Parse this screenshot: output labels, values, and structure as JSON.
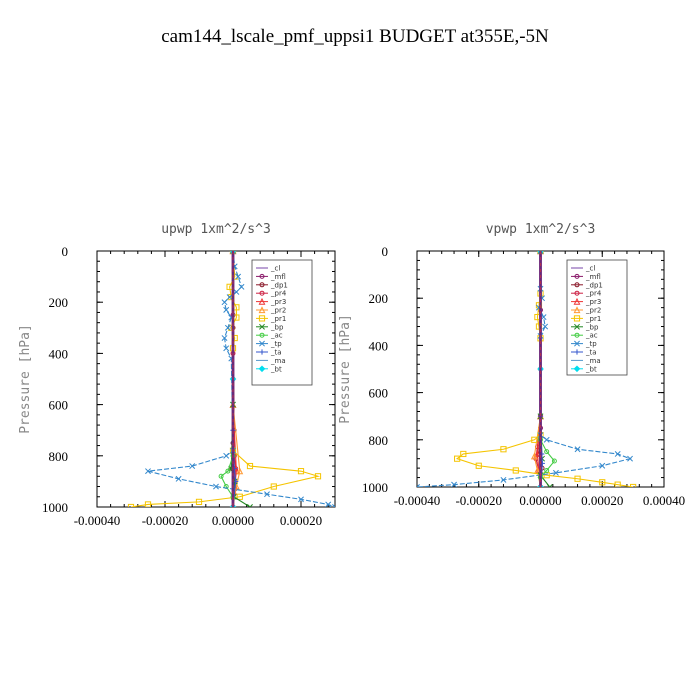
{
  "figure_title": "cam144_lscale_pmf_uppsi1  BUDGET at355E,-5N",
  "chart_data": [
    {
      "type": "line",
      "title": "upwp   1xm^2/s^3",
      "ylabel": "Pressure [hPa]",
      "xlabel": "",
      "xlim": [
        -0.0004,
        0.0003
      ],
      "ylim": [
        1000,
        0
      ],
      "x_ticks": [
        -0.0004,
        -0.0002,
        0.0,
        0.0002
      ],
      "x_tick_labels": [
        "-0.00040",
        "-0.00020",
        "0.00000",
        "0.00020"
      ],
      "y_ticks": [
        0,
        200,
        400,
        600,
        800,
        1000
      ],
      "y_tick_labels": [
        "0",
        "200",
        "400",
        "600",
        "800",
        "1000"
      ],
      "legend_position": "top-right",
      "series": [
        {
          "name": "_cl",
          "color": "#7744aa",
          "marker": "none",
          "x": [
            0,
            0,
            0,
            0,
            0
          ],
          "y": [
            0,
            250,
            500,
            750,
            1000
          ]
        },
        {
          "name": "_mfl",
          "color": "#8a1a6a",
          "marker": "circle",
          "x": [
            0,
            0,
            0,
            0,
            0
          ],
          "y": [
            0,
            250,
            500,
            750,
            1000
          ]
        },
        {
          "name": "_dp1",
          "color": "#8b1a2a",
          "marker": "circle",
          "x": [
            0,
            0,
            3e-06,
            -3e-06,
            5e-06,
            0
          ],
          "y": [
            0,
            300,
            700,
            850,
            930,
            1000
          ]
        },
        {
          "name": "_pr4",
          "color": "#cc2244",
          "marker": "circle",
          "x": [
            0,
            0,
            4e-06,
            8e-06,
            4e-06,
            3e-06,
            0
          ],
          "y": [
            0,
            400,
            800,
            850,
            900,
            950,
            1000
          ]
        },
        {
          "name": "_pr3",
          "color": "#ee3333",
          "marker": "triangle",
          "x": [
            0,
            0,
            1e-05,
            5e-06,
            0
          ],
          "y": [
            0,
            600,
            860,
            920,
            1000
          ]
        },
        {
          "name": "_pr2",
          "color": "#ff9933",
          "marker": "triangle",
          "x": [
            0,
            0,
            2e-05,
            1e-05,
            0
          ],
          "y": [
            0,
            600,
            860,
            920,
            1000
          ]
        },
        {
          "name": "_pr1",
          "color": "#f5c400",
          "marker": "square",
          "x": [
            0,
            5e-06,
            -1e-05,
            -5e-06,
            1e-05,
            1e-05,
            -5e-06,
            5e-06,
            0,
            0,
            5e-05,
            0.0002,
            0.00025,
            0.00012,
            2e-05,
            -0.0001,
            -0.00025,
            -0.0003
          ],
          "y": [
            0,
            100,
            140,
            180,
            220,
            260,
            300,
            340,
            380,
            780,
            840,
            860,
            880,
            920,
            960,
            980,
            990,
            1000
          ]
        },
        {
          "name": "_bp",
          "color": "#228822",
          "marker": "cross",
          "x": [
            0,
            0,
            -5e-06,
            5e-06,
            2e-06,
            5e-05
          ],
          "y": [
            0,
            600,
            850,
            900,
            960,
            1000
          ]
        },
        {
          "name": "_ac",
          "color": "#44cc44",
          "marker": "circle",
          "x": [
            0,
            0,
            -1.5e-05,
            -3.5e-05,
            -2e-05,
            0
          ],
          "y": [
            0,
            800,
            860,
            880,
            920,
            960
          ]
        },
        {
          "name": "_tp",
          "color": "#3388cc",
          "marker": "cross",
          "x": [
            0,
            5e-06,
            1.5e-05,
            2.5e-05,
            1e-05,
            -1e-05,
            -2.5e-05,
            -2e-05,
            -5e-06,
            -1.5e-05,
            -2.5e-05,
            -2e-05,
            -5e-06,
            0,
            -2e-05,
            -0.00012,
            -0.00025,
            -0.00016,
            -5e-05,
            0.0001,
            0.0002,
            0.00028,
            0.0003
          ],
          "y": [
            0,
            60,
            100,
            140,
            160,
            180,
            200,
            230,
            260,
            300,
            340,
            380,
            420,
            780,
            800,
            840,
            860,
            890,
            920,
            950,
            970,
            990,
            1000
          ]
        },
        {
          "name": "_ta",
          "color": "#3355cc",
          "marker": "plus",
          "x": [
            0,
            0,
            4e-06,
            8e-06,
            0
          ],
          "y": [
            0,
            700,
            850,
            900,
            1000
          ]
        },
        {
          "name": "_ma",
          "color": "#5599cc",
          "marker": "none",
          "x": [
            0,
            0,
            0
          ],
          "y": [
            0,
            500,
            1000
          ]
        },
        {
          "name": "_bt",
          "color": "#00ddee",
          "marker": "diamond",
          "x": [
            0,
            0,
            0
          ],
          "y": [
            0,
            500,
            1000
          ]
        }
      ]
    },
    {
      "type": "line",
      "title": "vpwp   1xm^2/s^3",
      "ylabel": "Pressure [hPa]",
      "xlabel": "",
      "xlim": [
        -0.0004,
        0.0004
      ],
      "ylim": [
        1000,
        0
      ],
      "x_ticks": [
        -0.0004,
        -0.0002,
        0.0,
        0.0002,
        0.0004
      ],
      "x_tick_labels": [
        "-0.00040",
        "-0.00020",
        "0.00000",
        "0.00020",
        "0.00040"
      ],
      "y_ticks": [
        0,
        200,
        400,
        600,
        800,
        1000
      ],
      "y_tick_labels": [
        "0",
        "200",
        "400",
        "600",
        "800",
        "1000"
      ],
      "legend_position": "top-right",
      "series": [
        {
          "name": "_cl",
          "color": "#7744aa",
          "marker": "none",
          "x": [
            0,
            0,
            0,
            0,
            0
          ],
          "y": [
            0,
            250,
            500,
            750,
            1000
          ]
        },
        {
          "name": "_mfl",
          "color": "#8a1a6a",
          "marker": "circle",
          "x": [
            0,
            0,
            0,
            0,
            0
          ],
          "y": [
            0,
            250,
            500,
            750,
            1000
          ]
        },
        {
          "name": "_dp1",
          "color": "#8b1a2a",
          "marker": "circle",
          "x": [
            0,
            0,
            -5e-06,
            5e-06,
            0
          ],
          "y": [
            0,
            700,
            860,
            920,
            1000
          ]
        },
        {
          "name": "_pr4",
          "color": "#cc2244",
          "marker": "circle",
          "x": [
            0,
            0,
            -1e-05,
            -1.5e-05,
            -5e-06,
            0
          ],
          "y": [
            0,
            700,
            830,
            880,
            930,
            1000
          ]
        },
        {
          "name": "_pr3",
          "color": "#ee3333",
          "marker": "triangle",
          "x": [
            0,
            0,
            -1e-05,
            -5e-06,
            0
          ],
          "y": [
            0,
            700,
            860,
            930,
            1000
          ]
        },
        {
          "name": "_pr2",
          "color": "#ff9933",
          "marker": "triangle",
          "x": [
            0,
            0,
            -2e-05,
            -1e-05,
            0
          ],
          "y": [
            0,
            700,
            870,
            930,
            1000
          ]
        },
        {
          "name": "_pr1",
          "color": "#f5c400",
          "marker": "square",
          "x": [
            0,
            0,
            -5e-06,
            -1e-05,
            -5e-06,
            0,
            0,
            -2e-05,
            -0.00012,
            -0.00025,
            -0.00027,
            -0.0002,
            -8e-05,
            2e-05,
            0.00012,
            0.0002,
            0.00025,
            0.0003
          ],
          "y": [
            0,
            180,
            230,
            280,
            320,
            370,
            780,
            800,
            840,
            860,
            880,
            910,
            930,
            950,
            965,
            980,
            990,
            1000
          ]
        },
        {
          "name": "_bp",
          "color": "#228822",
          "marker": "cross",
          "x": [
            0,
            0,
            5e-06,
            0,
            3e-05
          ],
          "y": [
            0,
            700,
            880,
            950,
            1000
          ]
        },
        {
          "name": "_ac",
          "color": "#44cc44",
          "marker": "circle",
          "x": [
            0,
            0,
            2e-05,
            4.5e-05,
            2e-05,
            0
          ],
          "y": [
            0,
            800,
            850,
            890,
            930,
            960
          ]
        },
        {
          "name": "_tp",
          "color": "#3388cc",
          "marker": "cross",
          "x": [
            0,
            0,
            5e-06,
            -5e-06,
            1e-05,
            1.5e-05,
            0,
            0,
            2e-05,
            0.00012,
            0.00025,
            0.00029,
            0.0002,
            5e-05,
            -0.00012,
            -0.00028,
            -0.0004
          ],
          "y": [
            0,
            160,
            200,
            240,
            280,
            320,
            360,
            780,
            800,
            840,
            860,
            880,
            910,
            940,
            970,
            990,
            1000
          ]
        },
        {
          "name": "_ta",
          "color": "#3355cc",
          "marker": "plus",
          "x": [
            0,
            0,
            4e-06,
            6e-06,
            0
          ],
          "y": [
            0,
            700,
            860,
            900,
            1000
          ]
        },
        {
          "name": "_ma",
          "color": "#5599cc",
          "marker": "none",
          "x": [
            0,
            0,
            0
          ],
          "y": [
            0,
            500,
            1000
          ]
        },
        {
          "name": "_bt",
          "color": "#00ddee",
          "marker": "diamond",
          "x": [
            0,
            0,
            0
          ],
          "y": [
            0,
            500,
            1000
          ]
        }
      ]
    }
  ]
}
